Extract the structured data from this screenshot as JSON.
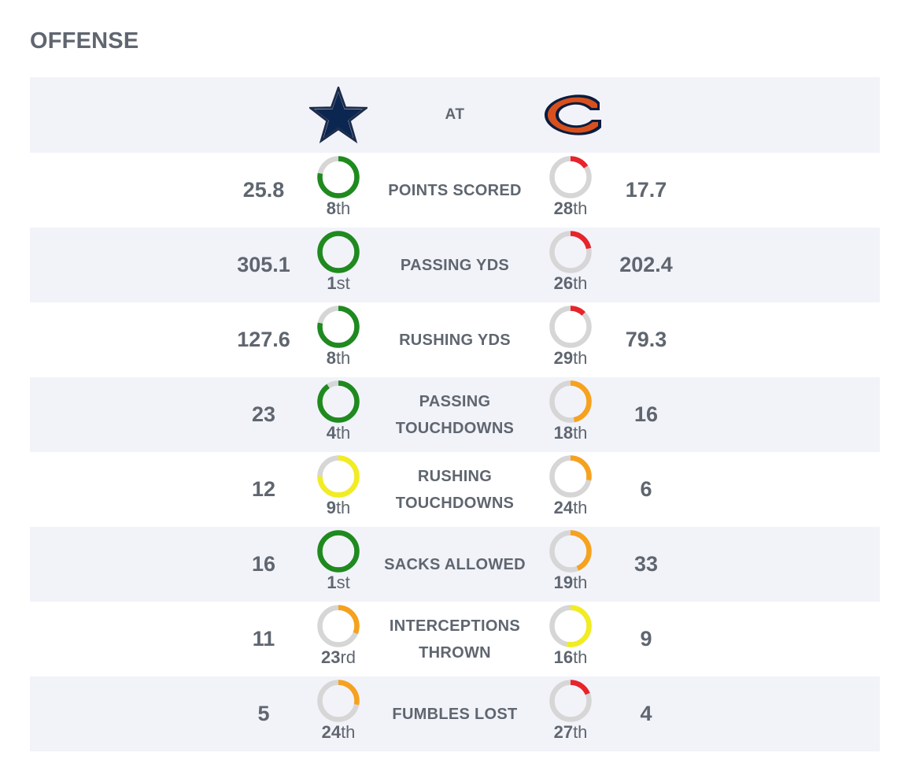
{
  "section_title": "OFFENSE",
  "header": {
    "away_team": "Dallas Cowboys",
    "home_team": "Chicago Bears",
    "at_label": "AT"
  },
  "total_teams": 32,
  "rank_colors": {
    "green": "#1f8a1f",
    "yellow": "#f2ec22",
    "orange": "#f6a21e",
    "red": "#e8232a",
    "track": "#d6d6d6"
  },
  "rows": [
    {
      "label": "POINTS SCORED",
      "away": {
        "value": "25.8",
        "rank": 8,
        "rank_num": "8",
        "rank_suffix": "th",
        "color": "#1f8a1f"
      },
      "home": {
        "value": "17.7",
        "rank": 28,
        "rank_num": "28",
        "rank_suffix": "th",
        "color": "#e8232a"
      }
    },
    {
      "label": "PASSING YDS",
      "away": {
        "value": "305.1",
        "rank": 1,
        "rank_num": "1",
        "rank_suffix": "st",
        "color": "#1f8a1f"
      },
      "home": {
        "value": "202.4",
        "rank": 26,
        "rank_num": "26",
        "rank_suffix": "th",
        "color": "#e8232a"
      }
    },
    {
      "label": "RUSHING YDS",
      "away": {
        "value": "127.6",
        "rank": 8,
        "rank_num": "8",
        "rank_suffix": "th",
        "color": "#1f8a1f"
      },
      "home": {
        "value": "79.3",
        "rank": 29,
        "rank_num": "29",
        "rank_suffix": "th",
        "color": "#e8232a"
      }
    },
    {
      "label": "PASSING TOUCHDOWNS",
      "away": {
        "value": "23",
        "rank": 4,
        "rank_num": "4",
        "rank_suffix": "th",
        "color": "#1f8a1f"
      },
      "home": {
        "value": "16",
        "rank": 18,
        "rank_num": "18",
        "rank_suffix": "th",
        "color": "#f6a21e"
      }
    },
    {
      "label": "RUSHING TOUCHDOWNS",
      "away": {
        "value": "12",
        "rank": 9,
        "rank_num": "9",
        "rank_suffix": "th",
        "color": "#f2ec22"
      },
      "home": {
        "value": "6",
        "rank": 24,
        "rank_num": "24",
        "rank_suffix": "th",
        "color": "#f6a21e"
      }
    },
    {
      "label": "SACKS ALLOWED",
      "away": {
        "value": "16",
        "rank": 1,
        "rank_num": "1",
        "rank_suffix": "st",
        "color": "#1f8a1f"
      },
      "home": {
        "value": "33",
        "rank": 19,
        "rank_num": "19",
        "rank_suffix": "th",
        "color": "#f6a21e"
      }
    },
    {
      "label": "INTERCEPTIONS THROWN",
      "away": {
        "value": "11",
        "rank": 23,
        "rank_num": "23",
        "rank_suffix": "rd",
        "color": "#f6a21e"
      },
      "home": {
        "value": "9",
        "rank": 16,
        "rank_num": "16",
        "rank_suffix": "th",
        "color": "#f2ec22"
      }
    },
    {
      "label": "FUMBLES LOST",
      "away": {
        "value": "5",
        "rank": 24,
        "rank_num": "24",
        "rank_suffix": "th",
        "color": "#f6a21e"
      },
      "home": {
        "value": "4",
        "rank": 27,
        "rank_num": "27",
        "rank_suffix": "th",
        "color": "#e8232a"
      }
    }
  ]
}
